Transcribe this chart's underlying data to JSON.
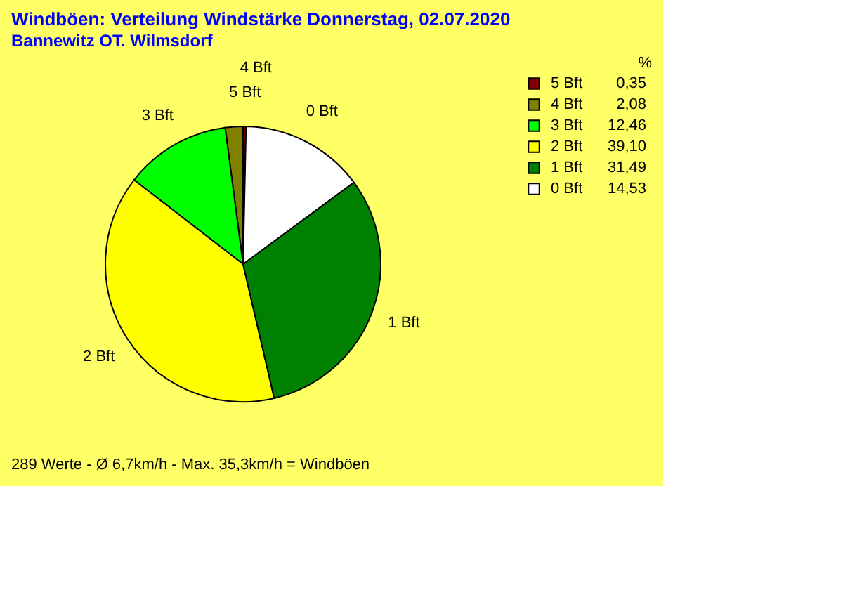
{
  "chart_data": {
    "type": "pie",
    "title": "Windböen: Verteilung Windstärke  Donnerstag, 02.07.2020",
    "subtitle": "Bannewitz OT. Wilmsdorf",
    "categories": [
      "5 Bft",
      "4 Bft",
      "3 Bft",
      "2 Bft",
      "1 Bft",
      "0 Bft"
    ],
    "values": [
      0.35,
      2.08,
      12.46,
      39.1,
      31.49,
      14.53
    ],
    "value_labels": [
      "0,35",
      "2,08",
      "12,46",
      "39,10",
      "31,49",
      "14,53"
    ],
    "colors": [
      "#800000",
      "#808000",
      "#00ff00",
      "#ffff00",
      "#008000",
      "#ffffff"
    ],
    "legend": "right",
    "legend_title": "%",
    "annotations": [
      "289 Werte   -   Ø 6,7km/h  -  Max. 35,3km/h = Windböen"
    ]
  }
}
